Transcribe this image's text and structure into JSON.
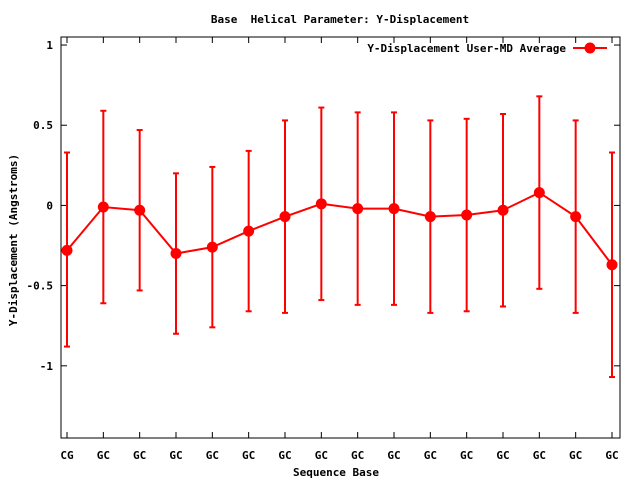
{
  "chart_data": {
    "type": "line",
    "title": "Base  Helical Parameter: Y-Displacement",
    "xlabel": "Sequence Base",
    "ylabel": "Y-Displacement (Angstroms)",
    "ylim": [
      -1.45,
      1.05
    ],
    "yticks": [
      -1,
      -0.5,
      0,
      0.5,
      1
    ],
    "ytick_labels": [
      "-1",
      "-0.5",
      "0",
      "0.5",
      "1"
    ],
    "grid": false,
    "legend_position": "top-right",
    "categories": [
      "CG",
      "GC",
      "GC",
      "GC",
      "GC",
      "GC",
      "GC",
      "GC",
      "GC",
      "GC",
      "GC",
      "GC",
      "GC",
      "GC",
      "GC",
      "GC"
    ],
    "series": [
      {
        "name": "Y-Displacement User-MD Average",
        "color": "#ff0000",
        "values": [
          -0.28,
          -0.01,
          -0.03,
          -0.3,
          -0.26,
          -0.16,
          -0.07,
          0.01,
          -0.02,
          -0.02,
          -0.07,
          -0.06,
          -0.03,
          0.08,
          -0.07,
          -0.37
        ],
        "error_low": [
          -0.88,
          -0.61,
          -0.53,
          -0.8,
          -0.76,
          -0.66,
          -0.67,
          -0.59,
          -0.62,
          -0.62,
          -0.67,
          -0.66,
          -0.63,
          -0.52,
          -0.67,
          -1.07
        ],
        "error_high": [
          0.33,
          0.59,
          0.47,
          0.2,
          0.24,
          0.34,
          0.53,
          0.61,
          0.58,
          0.58,
          0.53,
          0.54,
          0.57,
          0.68,
          0.53,
          0.33
        ]
      }
    ]
  }
}
